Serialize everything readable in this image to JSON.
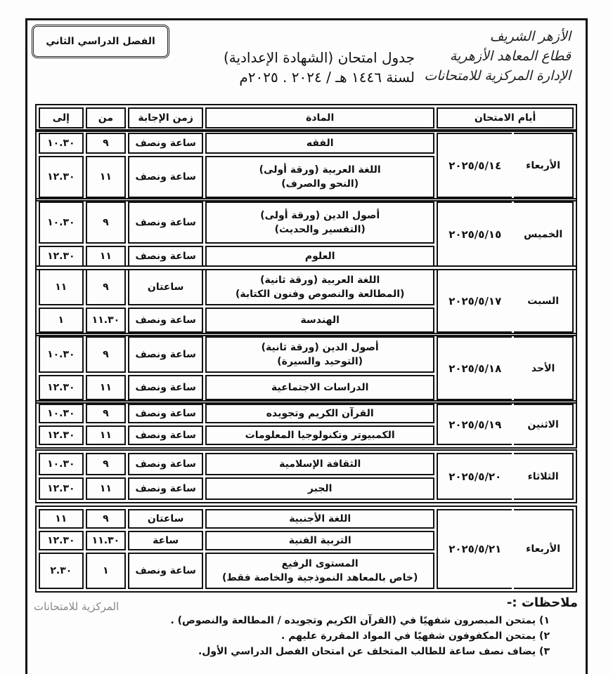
{
  "header": {
    "semester": "الفصل الدراسي الثاني",
    "org_line1": "الأزهر الشريف",
    "org_line2": "قطاع المعاهد الأزهرية",
    "org_line3": "الإدارة المركزية للامتحانات",
    "title": "جدول امتحان (الشهادة الإعدادية)",
    "subtitle": "لسنة ١٤٤٦ هـ / ٢٠٢٤ . ٢٠٢٥م"
  },
  "table": {
    "columns": [
      "أيام الامتحان",
      "المادة",
      "زمن الإجابة",
      "من",
      "إلى"
    ],
    "groups": [
      {
        "day": "الأربعاء",
        "date": "٢٠٢٥/٥/١٤",
        "rows": [
          {
            "subject": [
              "الفقه"
            ],
            "duration": "ساعة ونصف",
            "from": "٩",
            "to": "١٠.٣٠"
          },
          {
            "subject": [
              "اللغة العربية (ورقة أولى)",
              "(النحو والصرف)"
            ],
            "duration": "ساعة ونصف",
            "from": "١١",
            "to": "١٢.٣٠"
          }
        ]
      },
      {
        "day": "الخميس",
        "date": "٢٠٢٥/٥/١٥",
        "rows": [
          {
            "subject": [
              "أصول الدين (ورقة أولى)",
              "(التفسير والحديث)"
            ],
            "duration": "ساعة ونصف",
            "from": "٩",
            "to": "١٠.٣٠"
          },
          {
            "subject": [
              "العلوم"
            ],
            "duration": "ساعة ونصف",
            "from": "١١",
            "to": "١٢.٣٠"
          }
        ]
      },
      {
        "day": "السبت",
        "date": "٢٠٢٥/٥/١٧",
        "rows": [
          {
            "subject": [
              "اللغة العربية (ورقة ثانية)",
              "(المطالعة والنصوص وفنون الكتابة)"
            ],
            "duration": "ساعتان",
            "from": "٩",
            "to": "١١"
          },
          {
            "subject": [
              "الهندسة"
            ],
            "duration": "ساعة ونصف",
            "from": "١١.٣٠",
            "to": "١"
          }
        ]
      },
      {
        "day": "الأحد",
        "date": "٢٠٢٥/٥/١٨",
        "rows": [
          {
            "subject": [
              "أصول الدين (ورقة ثانية)",
              "(التوحيد والسيرة)"
            ],
            "duration": "ساعة ونصف",
            "from": "٩",
            "to": "١٠.٣٠"
          },
          {
            "subject": [
              "الدراسات الاجتماعية"
            ],
            "duration": "ساعة ونصف",
            "from": "١١",
            "to": "١٢.٣٠"
          }
        ]
      },
      {
        "day": "الاثنين",
        "date": "٢٠٢٥/٥/١٩",
        "rows": [
          {
            "subject": [
              "القرآن الكريم وتجويده"
            ],
            "duration": "ساعة ونصف",
            "from": "٩",
            "to": "١٠.٣٠"
          },
          {
            "subject": [
              "الكمبيوتر وتكنولوجيا المعلومات"
            ],
            "duration": "ساعة ونصف",
            "from": "١١",
            "to": "١٢.٣٠"
          }
        ]
      },
      {
        "day": "الثلاثاء",
        "date": "٢٠٢٥/٥/٢٠",
        "rows": [
          {
            "subject": [
              "الثقافة الإسلامية"
            ],
            "duration": "ساعة ونصف",
            "from": "٩",
            "to": "١٠.٣٠"
          },
          {
            "subject": [
              "الجبر"
            ],
            "duration": "ساعة ونصف",
            "from": "١١",
            "to": "١٢.٣٠"
          }
        ]
      },
      {
        "day": "الأربعاء",
        "date": "٢٠٢٥/٥/٢١",
        "rows": [
          {
            "subject": [
              "اللغة الأجنبية"
            ],
            "duration": "ساعتان",
            "from": "٩",
            "to": "١١"
          },
          {
            "subject": [
              "التربية الفنية"
            ],
            "duration": "ساعة",
            "from": "١١.٣٠",
            "to": "١٢.٣٠"
          },
          {
            "subject": [
              "المستوى الرفيع",
              "(خاص بالمعاهد النموذجية والخاصة فقط)"
            ],
            "duration": "ساعة ونصف",
            "from": "١",
            "to": "٢.٣٠"
          }
        ]
      }
    ]
  },
  "notes": {
    "title": "ملاحظات :-",
    "items": [
      "١)  يمتحن المبصرون شفهيًا في (القرآن الكريم وتجويده / المطالعة والنصوص) .",
      "٢)  يمتحن المكفوفون شفهيًا في المواد المقررة عليهم .",
      "٣)  يضاف نصف ساعة للطالب المتخلف عن امتحان الفصل الدراسي الأول."
    ],
    "stamp": "المركزية للامتحانات"
  }
}
